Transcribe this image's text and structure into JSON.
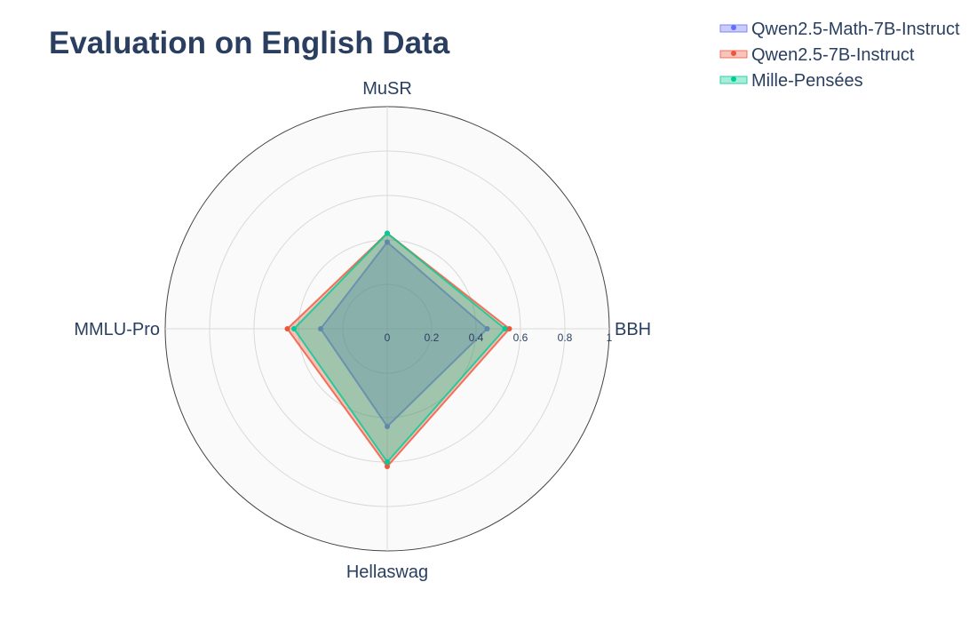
{
  "chart_data": {
    "type": "radar",
    "title": "Evaluation on English Data",
    "axes": [
      "MuSR",
      "BBH",
      "Hellaswag",
      "MMLU-Pro"
    ],
    "radial_range": [
      0,
      1
    ],
    "radial_ticks": [
      "0",
      "0.2",
      "0.4",
      "0.6",
      "0.8",
      "1"
    ],
    "grid": true,
    "legend_position": "top-right",
    "series": [
      {
        "name": "Qwen2.5-Math-7B-Instruct",
        "values": [
          0.39,
          0.45,
          0.44,
          0.3
        ],
        "color": "#636efa"
      },
      {
        "name": "Qwen2.5-7B-Instruct",
        "values": [
          0.43,
          0.55,
          0.62,
          0.45
        ],
        "color": "#ef553b"
      },
      {
        "name": "Mille-Pensées",
        "values": [
          0.43,
          0.53,
          0.6,
          0.42
        ],
        "color": "#00cc96"
      }
    ]
  }
}
